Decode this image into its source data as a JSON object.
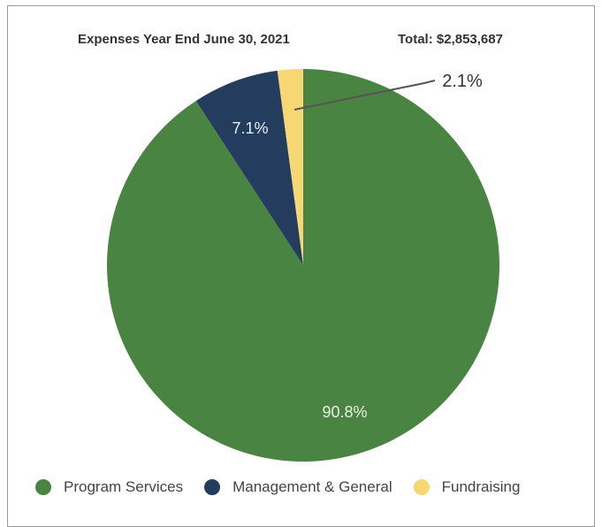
{
  "chart_data": {
    "type": "pie",
    "title": "Expenses Year End June 30, 2021",
    "subtitle": "Total: $2,853,687",
    "categories": [
      "Program Services",
      "Management & General",
      "Fundraising"
    ],
    "values": [
      90.8,
      7.1,
      2.1
    ],
    "labels": [
      "90.8%",
      "7.1%",
      "2.1%"
    ],
    "colors": [
      "#4a8442",
      "#243c5e",
      "#f7d774"
    ],
    "legend_position": "bottom"
  }
}
